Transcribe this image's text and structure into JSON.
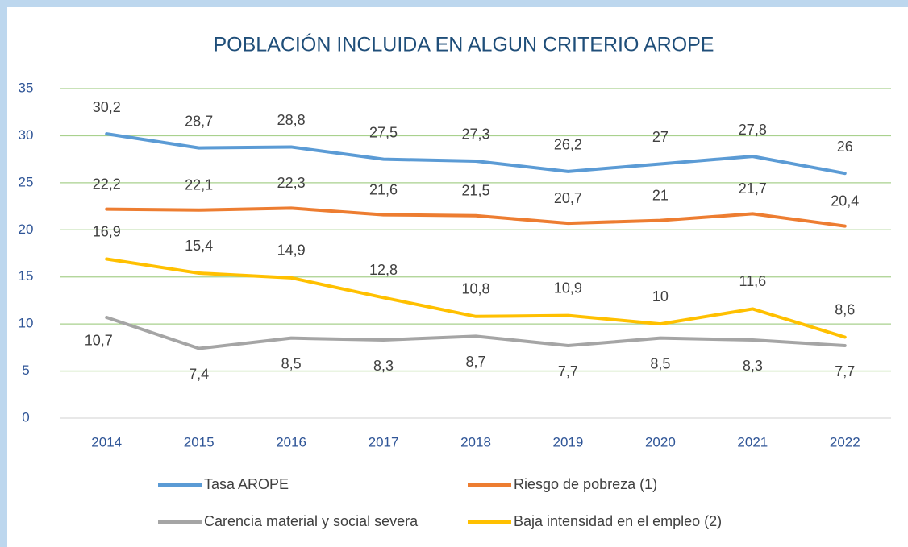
{
  "chart_data": {
    "type": "line",
    "title": "POBLACIÓN INCLUIDA EN ALGUN CRITERIO AROPE",
    "categories": [
      "2014",
      "2015",
      "2016",
      "2017",
      "2018",
      "2019",
      "2020",
      "2021",
      "2022"
    ],
    "ylim": [
      0,
      35
    ],
    "yticks": [
      0,
      5,
      10,
      15,
      20,
      25,
      30,
      35
    ],
    "grid": true,
    "legend": "bottom",
    "series": [
      {
        "name": "Tasa AROPE",
        "color": "#5b9bd5",
        "values": [
          30.2,
          28.7,
          28.8,
          27.5,
          27.3,
          26.2,
          27,
          27.8,
          26
        ],
        "value_labels": [
          "30,2",
          "28,7",
          "28,8",
          "27,5",
          "27,3",
          "26,2",
          "27",
          "27,8",
          "26"
        ]
      },
      {
        "name": "Riesgo de pobreza (1)",
        "color": "#ed7d31",
        "values": [
          22.2,
          22.1,
          22.3,
          21.6,
          21.5,
          20.7,
          21,
          21.7,
          20.4
        ],
        "value_labels": [
          "22,2",
          "22,1",
          "22,3",
          "21,6",
          "21,5",
          "20,7",
          "21",
          "21,7",
          "20,4"
        ]
      },
      {
        "name": "Carencia material y social severa",
        "color": "#a5a5a5",
        "values": [
          10.7,
          7.4,
          8.5,
          8.3,
          8.7,
          7.7,
          8.5,
          8.3,
          7.7
        ],
        "value_labels": [
          "10,7",
          "7,4",
          "8,5",
          "8,3",
          "8,7",
          "7,7",
          "8,5",
          "8,3",
          "7,7"
        ]
      },
      {
        "name": "Baja intensidad en el empleo (2)",
        "color": "#ffc000",
        "values": [
          16.9,
          15.4,
          14.9,
          12.8,
          10.8,
          10.9,
          10,
          11.6,
          8.6
        ],
        "value_labels": [
          "16,9",
          "15,4",
          "14,9",
          "12,8",
          "10,8",
          "10,9",
          "10",
          "11,6",
          "8,6"
        ]
      }
    ]
  }
}
